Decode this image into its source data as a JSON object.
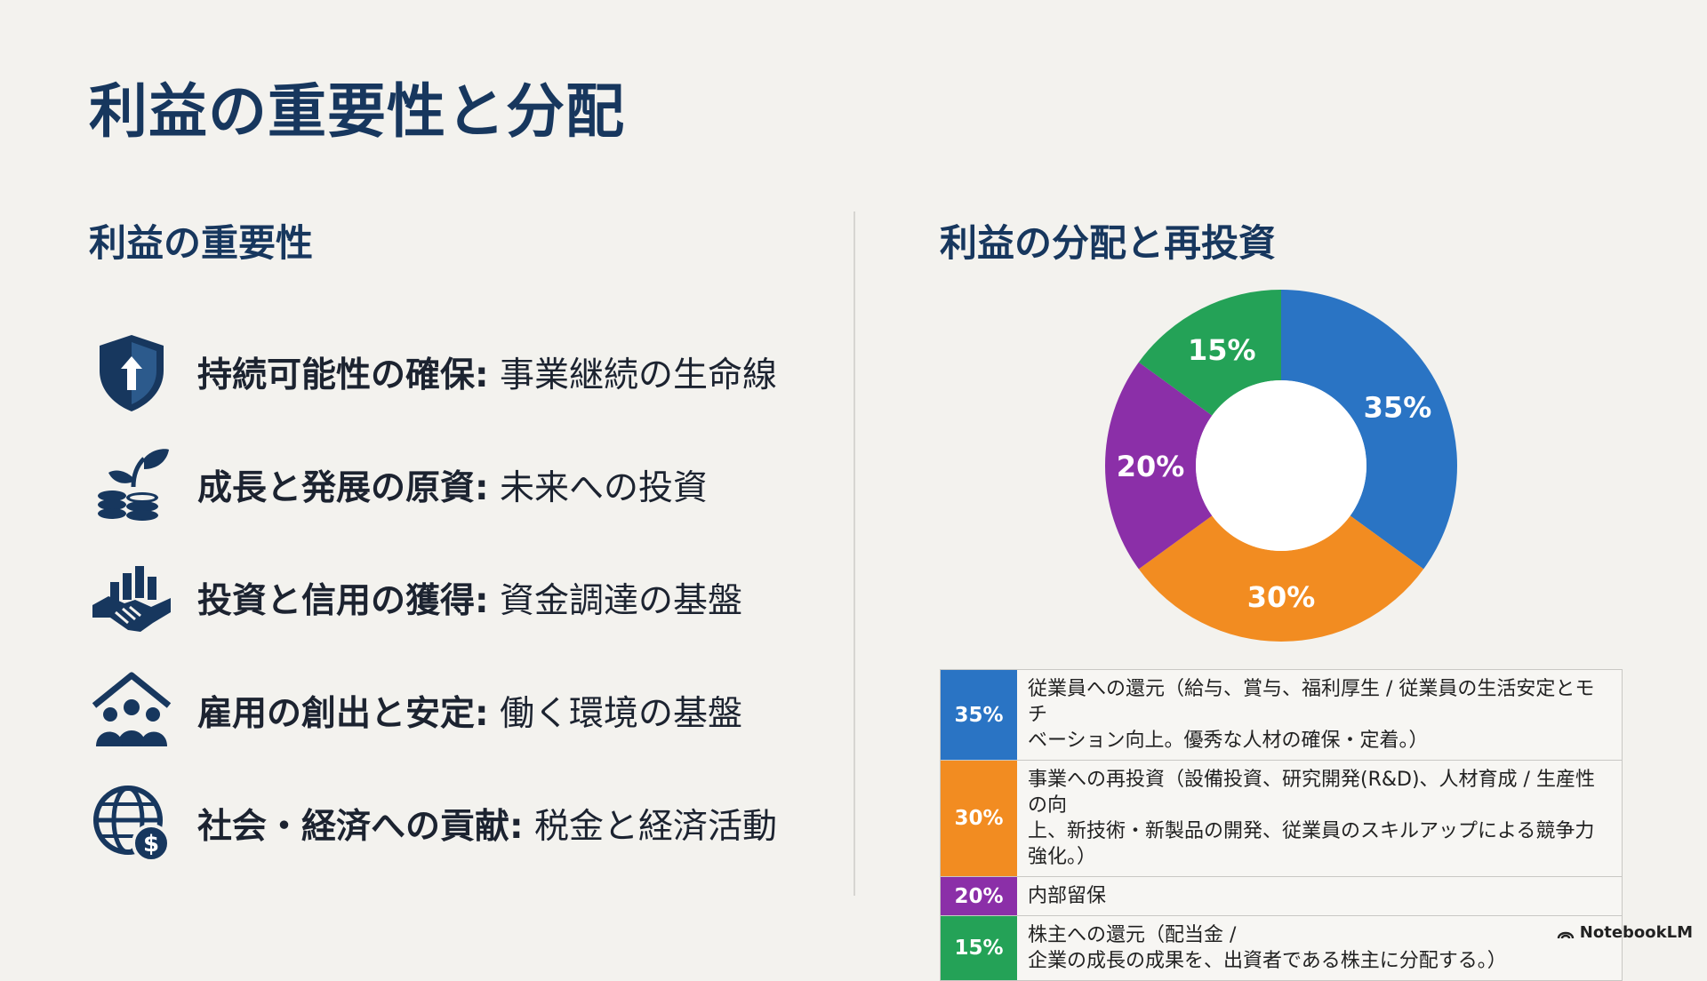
{
  "title": "利益の重要性と分配",
  "left": {
    "heading": "利益の重要性",
    "items": [
      {
        "icon": "shield-arrow-icon",
        "bold": "持続可能性の確保:",
        "normal": " 事業継続の生命線"
      },
      {
        "icon": "sprout-coins-icon",
        "bold": "成長と発展の原資:",
        "normal": " 未来への投資"
      },
      {
        "icon": "handshake-chart-icon",
        "bold": "投資と信用の獲得:",
        "normal": " 資金調達の基盤"
      },
      {
        "icon": "house-people-icon",
        "bold": "雇用の創出と安定:",
        "normal": " 働く環境の基盤"
      },
      {
        "icon": "globe-dollar-icon",
        "bold": "社会・経済への貢献:",
        "normal": " 税金と経済活動"
      }
    ]
  },
  "right": {
    "heading": "利益の分配と再投資"
  },
  "colors": {
    "blue": "#2a74c4",
    "orange": "#f28c21",
    "purple": "#8b2fa8",
    "green": "#24a257",
    "navy": "#17375e"
  },
  "chart_data": {
    "type": "pie",
    "donut": true,
    "slices": [
      {
        "label": "35%",
        "value": 35,
        "color": "#2a74c4",
        "description": "従業員への還元（給与、賞与、福利厚生 / 従業員の生活安定とモチベーション向上。優秀な人材の確保・定着。）"
      },
      {
        "label": "30%",
        "value": 30,
        "color": "#f28c21",
        "description": "事業への再投資（設備投資、研究開発(R&D)、人材育成 / 生産性の向上、新技術・新製品の開発、従業員のスキルアップによる競争力強化。）"
      },
      {
        "label": "20%",
        "value": 20,
        "color": "#8b2fa8",
        "description": "内部留保"
      },
      {
        "label": "15%",
        "value": 15,
        "color": "#24a257",
        "description": "株主への還元（配当金 / 企業の成長の成果を、出資者である株主に分配する。）"
      }
    ]
  },
  "legend": [
    {
      "pct": "35%",
      "color": "#2a74c4",
      "line1": "従業員への還元（給与、賞与、福利厚生 / 従業員の生活安定とモチ",
      "line2": "ベーション向上。優秀な人材の確保・定着。）"
    },
    {
      "pct": "30%",
      "color": "#f28c21",
      "line1": "事業への再投資（設備投資、研究開発(R&D)、人材育成 / 生産性の向",
      "line2": "上、新技術・新製品の開発、従業員のスキルアップによる競争力強化。）"
    },
    {
      "pct": "20%",
      "color": "#8b2fa8",
      "line1": "内部留保",
      "line2": ""
    },
    {
      "pct": "15%",
      "color": "#24a257",
      "line1": "株主への還元（配当金 /",
      "line2": "企業の成長の成果を、出資者である株主に分配する。）"
    }
  ],
  "brand": "NotebookLM"
}
